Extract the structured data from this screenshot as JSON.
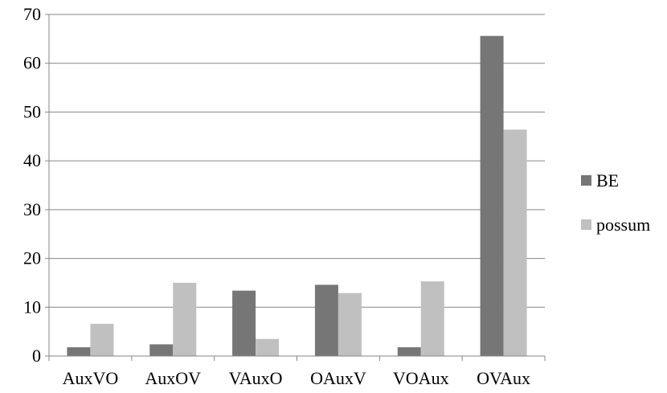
{
  "chart_data": {
    "type": "bar",
    "categories": [
      "AuxVO",
      "AuxOV",
      "VAuxO",
      "OAuxV",
      "VOAux",
      "OVAux"
    ],
    "series": [
      {
        "name": "BE",
        "color": "#767676",
        "values": [
          1.8,
          2.4,
          13.4,
          14.6,
          1.8,
          65.6
        ]
      },
      {
        "name": "possum",
        "color": "#c0c0c0",
        "values": [
          6.6,
          15.0,
          3.5,
          12.9,
          15.3,
          46.4
        ]
      }
    ],
    "title": "",
    "xlabel": "",
    "ylabel": "",
    "ylim": [
      0,
      70
    ],
    "yticks": [
      0,
      10,
      20,
      30,
      40,
      50,
      60,
      70
    ],
    "grid": true,
    "legend_position": "right"
  }
}
